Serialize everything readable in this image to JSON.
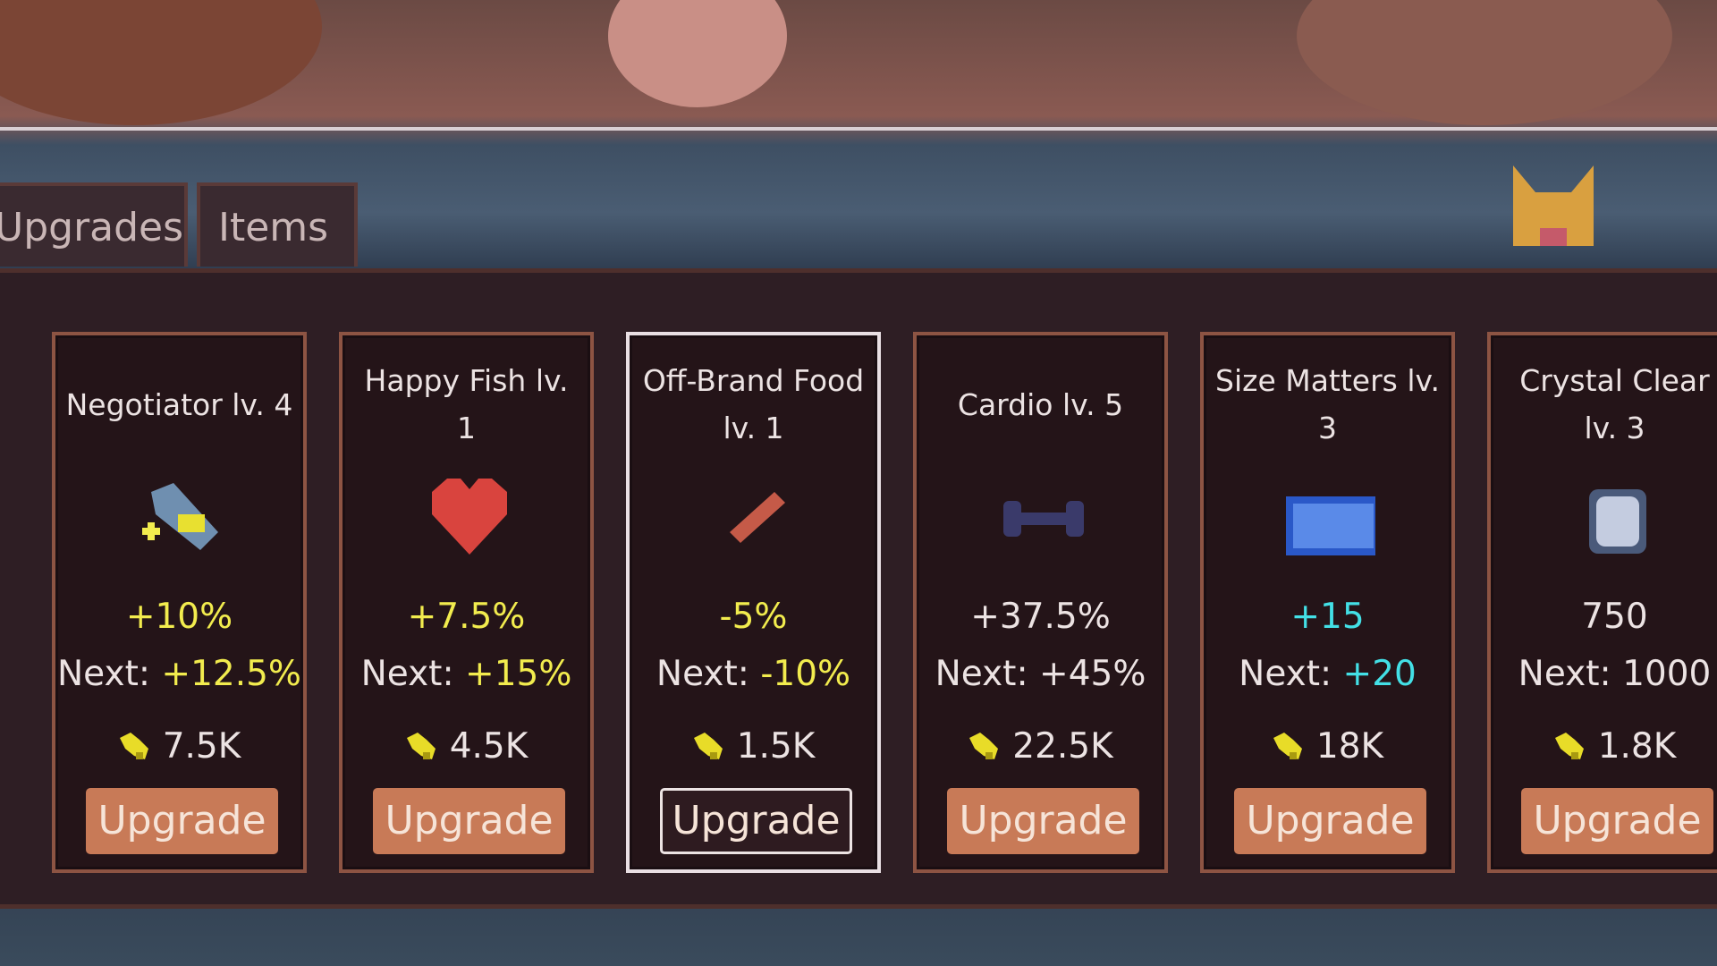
{
  "tabs": [
    "Upgrades",
    "Items"
  ],
  "cards": [
    {
      "name": "Negotiator lv. 4",
      "value": "+10%",
      "next_label": "Next:",
      "next": "+12.5%",
      "cost": "7.5K",
      "button": "Upgrade"
    },
    {
      "name": "Happy Fish lv. 1",
      "value": "+7.5%",
      "next_label": "Next:",
      "next": "+15%",
      "cost": "4.5K",
      "button": "Upgrade"
    },
    {
      "name": "Off-Brand Food lv. 1",
      "value": "-5%",
      "next_label": "Next:",
      "next": "-10%",
      "cost": "1.5K",
      "button": "Upgrade"
    },
    {
      "name": "Cardio lv. 5",
      "value": "+37.5%",
      "next_label": "Next:",
      "next": "+45%",
      "cost": "22.5K",
      "button": "Upgrade"
    },
    {
      "name": "Size Matters lv. 3",
      "value": "+15",
      "next_label": "Next:",
      "next": "+20",
      "cost": "18K",
      "button": "Upgrade"
    },
    {
      "name": "Crystal Clear lv. 3",
      "value": "750",
      "next_label": "Next:",
      "next": "1000",
      "cost": "1.8K",
      "button": "Upgrade"
    }
  ]
}
